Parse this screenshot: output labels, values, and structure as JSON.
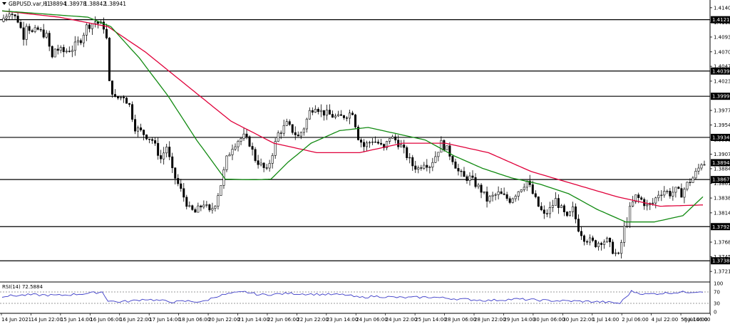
{
  "header": {
    "symbol_label": "GBPUSD.var,H1",
    "ohlc": [
      "1.38894",
      "1.38978",
      "1.38842",
      "1.38941"
    ]
  },
  "colors": {
    "candle": "#000000",
    "ma_slow": "#e0003a",
    "ma_fast": "#118a11",
    "rsi_line": "#3c3cc8",
    "level_line": "#000000",
    "badge_bg": "#000000",
    "badge_text": "#ffffff"
  },
  "chart_data": [
    {
      "type": "candlestick",
      "title": "GBPUSD.var,H1",
      "ylim": [
        1.3707,
        1.415
      ],
      "price_ticks": [
        "1.41400",
        "1.41165",
        "1.40935",
        "1.40700",
        "1.40470",
        "1.40235",
        "1.39770",
        "1.39540",
        "1.39310",
        "1.39075",
        "1.38845",
        "1.38610",
        "1.38380",
        "1.38145",
        "1.37680",
        "1.37450",
        "1.37215"
      ],
      "levels": [
        "1.41210",
        "1.40395",
        "1.39995",
        "1.39342",
        "1.38673",
        "1.37926",
        "1.37384"
      ],
      "current_price": "1.38941",
      "path": [
        [
          0,
          1.4118
        ],
        [
          3,
          1.4135
        ],
        [
          6,
          1.412
        ],
        [
          8,
          1.4095
        ],
        [
          9,
          1.4115
        ],
        [
          11,
          1.41
        ],
        [
          13,
          1.4105
        ],
        [
          16,
          1.4095
        ],
        [
          18,
          1.406
        ],
        [
          19,
          1.4075
        ],
        [
          22,
          1.407
        ],
        [
          25,
          1.4075
        ],
        [
          28,
          1.409
        ],
        [
          30,
          1.411
        ],
        [
          33,
          1.4118
        ],
        [
          36,
          1.411
        ],
        [
          37,
          1.409
        ],
        [
          38,
          1.402
        ],
        [
          40,
          1.3995
        ],
        [
          43,
          1.4
        ],
        [
          45,
          1.3985
        ],
        [
          47,
          1.395
        ],
        [
          50,
          1.394
        ],
        [
          53,
          1.393
        ],
        [
          56,
          1.39
        ],
        [
          58,
          1.392
        ],
        [
          60,
          1.388
        ],
        [
          62,
          1.386
        ],
        [
          64,
          1.384
        ],
        [
          66,
          1.382
        ],
        [
          68,
          1.3815
        ],
        [
          71,
          1.383
        ],
        [
          73,
          1.3815
        ],
        [
          75,
          1.383
        ],
        [
          77,
          1.386
        ],
        [
          79,
          1.39
        ],
        [
          81,
          1.392
        ],
        [
          83,
          1.393
        ],
        [
          85,
          1.3935
        ],
        [
          87,
          1.3925
        ],
        [
          89,
          1.39
        ],
        [
          91,
          1.389
        ],
        [
          93,
          1.388
        ],
        [
          95,
          1.391
        ],
        [
          97,
          1.394
        ],
        [
          100,
          1.3955
        ],
        [
          102,
          1.3945
        ],
        [
          104,
          1.3935
        ],
        [
          106,
          1.395
        ],
        [
          108,
          1.3975
        ],
        [
          110,
          1.3985
        ],
        [
          112,
          1.3975
        ],
        [
          115,
          1.397
        ],
        [
          118,
          1.3965
        ],
        [
          121,
          1.397
        ],
        [
          123,
          1.3975
        ],
        [
          125,
          1.3935
        ],
        [
          127,
          1.392
        ],
        [
          130,
          1.393
        ],
        [
          132,
          1.3925
        ],
        [
          134,
          1.3915
        ],
        [
          136,
          1.3935
        ],
        [
          138,
          1.393
        ],
        [
          140,
          1.392
        ],
        [
          142,
          1.3905
        ],
        [
          144,
          1.389
        ],
        [
          146,
          1.3885
        ],
        [
          148,
          1.3895
        ],
        [
          150,
          1.389
        ],
        [
          152,
          1.3905
        ],
        [
          154,
          1.3925
        ],
        [
          156,
          1.3915
        ],
        [
          158,
          1.39
        ],
        [
          160,
          1.388
        ],
        [
          162,
          1.387
        ],
        [
          164,
          1.387
        ],
        [
          166,
          1.386
        ],
        [
          168,
          1.385
        ],
        [
          170,
          1.3835
        ],
        [
          172,
          1.384
        ],
        [
          174,
          1.3845
        ],
        [
          176,
          1.384
        ],
        [
          178,
          1.3835
        ],
        [
          180,
          1.3845
        ],
        [
          182,
          1.3855
        ],
        [
          184,
          1.3865
        ],
        [
          186,
          1.3845
        ],
        [
          188,
          1.3825
        ],
        [
          190,
          1.381
        ],
        [
          192,
          1.382
        ],
        [
          194,
          1.3835
        ],
        [
          196,
          1.382
        ],
        [
          198,
          1.3805
        ],
        [
          200,
          1.382
        ],
        [
          202,
          1.379
        ],
        [
          204,
          1.3775
        ],
        [
          206,
          1.377
        ],
        [
          208,
          1.3765
        ],
        [
          210,
          1.377
        ],
        [
          212,
          1.377
        ],
        [
          214,
          1.3755
        ],
        [
          216,
          1.3745
        ],
        [
          218,
          1.379
        ],
        [
          220,
          1.382
        ],
        [
          222,
          1.384
        ],
        [
          224,
          1.3835
        ],
        [
          226,
          1.3825
        ],
        [
          228,
          1.383
        ],
        [
          230,
          1.3845
        ],
        [
          232,
          1.385
        ],
        [
          234,
          1.3845
        ],
        [
          236,
          1.385
        ],
        [
          238,
          1.3845
        ],
        [
          240,
          1.386
        ],
        [
          242,
          1.387
        ],
        [
          244,
          1.3885
        ],
        [
          245,
          1.3894
        ]
      ],
      "ma_slow": [
        [
          0,
          1.4135
        ],
        [
          20,
          1.4125
        ],
        [
          37,
          1.411
        ],
        [
          50,
          1.407
        ],
        [
          65,
          1.4015
        ],
        [
          80,
          1.396
        ],
        [
          95,
          1.3925
        ],
        [
          110,
          1.391
        ],
        [
          125,
          1.391
        ],
        [
          140,
          1.3925
        ],
        [
          155,
          1.3925
        ],
        [
          170,
          1.391
        ],
        [
          185,
          1.388
        ],
        [
          200,
          1.386
        ],
        [
          215,
          1.384
        ],
        [
          230,
          1.3825
        ],
        [
          245,
          1.3827
        ]
      ],
      "ma_fast": [
        [
          0,
          1.4135
        ],
        [
          15,
          1.413
        ],
        [
          30,
          1.4125
        ],
        [
          38,
          1.411
        ],
        [
          48,
          1.406
        ],
        [
          58,
          1.4
        ],
        [
          68,
          1.393
        ],
        [
          78,
          1.3868
        ],
        [
          88,
          1.3867
        ],
        [
          94,
          1.3868
        ],
        [
          100,
          1.3895
        ],
        [
          108,
          1.3925
        ],
        [
          118,
          1.3945
        ],
        [
          128,
          1.395
        ],
        [
          138,
          1.394
        ],
        [
          148,
          1.393
        ],
        [
          158,
          1.3905
        ],
        [
          168,
          1.3885
        ],
        [
          178,
          1.387
        ],
        [
          188,
          1.386
        ],
        [
          198,
          1.3845
        ],
        [
          208,
          1.382
        ],
        [
          218,
          1.38
        ],
        [
          228,
          1.38
        ],
        [
          238,
          1.381
        ],
        [
          245,
          1.384
        ]
      ],
      "x_labels": [
        "14 Jun 2021",
        "14 Jun 22:00",
        "15 Jun 14:00",
        "16 Jun 06:00",
        "16 Jun 22:00",
        "17 Jun 14:00",
        "18 Jun 06:00",
        "20 Jun 22:00",
        "21 Jun 14:00",
        "22 Jun 06:00",
        "22 Jun 22:00",
        "23 Jun 14:00",
        "24 Jun 06:00",
        "24 Jun 22:00",
        "25 Jun 14:00",
        "28 Jun 06:00",
        "28 Jun 22:00",
        "29 Jun 14:00",
        "30 Jun 06:00",
        "30 Jun 22:00",
        "1 Jul 14:00",
        "2 Jul 06:00",
        "4 Jul 22:00",
        "5 Jul 14:00",
        "6 Jul 06:00"
      ]
    },
    {
      "type": "line",
      "title": "RSI(14) 72.5884",
      "ylim": [
        0,
        100
      ],
      "y_ticks": [
        "100",
        "70",
        "30",
        "0"
      ],
      "dashed_levels": [
        70,
        30
      ],
      "values": [
        [
          0,
          55
        ],
        [
          10,
          60
        ],
        [
          20,
          58
        ],
        [
          30,
          65
        ],
        [
          35,
          70
        ],
        [
          37,
          40
        ],
        [
          40,
          35
        ],
        [
          45,
          38
        ],
        [
          50,
          45
        ],
        [
          55,
          40
        ],
        [
          60,
          35
        ],
        [
          65,
          38
        ],
        [
          70,
          35
        ],
        [
          75,
          55
        ],
        [
          80,
          65
        ],
        [
          85,
          70
        ],
        [
          90,
          60
        ],
        [
          95,
          62
        ],
        [
          100,
          65
        ],
        [
          110,
          62
        ],
        [
          120,
          60
        ],
        [
          125,
          50
        ],
        [
          130,
          55
        ],
        [
          140,
          50
        ],
        [
          150,
          52
        ],
        [
          160,
          45
        ],
        [
          170,
          40
        ],
        [
          180,
          45
        ],
        [
          190,
          40
        ],
        [
          200,
          38
        ],
        [
          210,
          35
        ],
        [
          216,
          30
        ],
        [
          220,
          72
        ],
        [
          225,
          62
        ],
        [
          230,
          65
        ],
        [
          235,
          68
        ],
        [
          240,
          70
        ],
        [
          245,
          72.6
        ]
      ]
    }
  ]
}
